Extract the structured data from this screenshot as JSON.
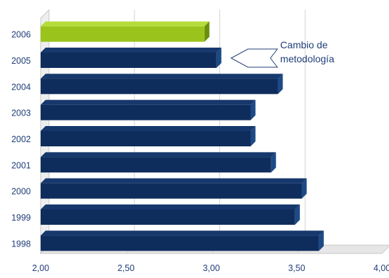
{
  "chart_data": {
    "type": "bar",
    "orientation": "horizontal",
    "title": "",
    "xlabel": "",
    "ylabel": "",
    "categories": [
      "1998",
      "1999",
      "2000",
      "2001",
      "2002",
      "2003",
      "2004",
      "2005",
      "2006"
    ],
    "values": [
      3.63,
      3.49,
      3.53,
      3.35,
      3.23,
      3.23,
      3.39,
      3.03,
      2.96
    ],
    "xlim": [
      2.0,
      4.0
    ],
    "x_ticks": [
      "2,00",
      "2,50",
      "3,00",
      "3,50",
      "4,00"
    ],
    "grid": true,
    "legend": "none",
    "highlight_category": "2006",
    "colors": {
      "bar": "#0f2d5c",
      "bar_side": "#1d4a85",
      "bar_top": "#16386d",
      "highlight": "#9ac31c",
      "highlight_side": "#6a8f0c",
      "highlight_top": "#b6dc3c",
      "axis_text": "#1f3d78",
      "grid": "#d4d4d4"
    },
    "annotation": {
      "text_line1": "Cambio de",
      "text_line2": "metodología",
      "category": "2005"
    }
  }
}
